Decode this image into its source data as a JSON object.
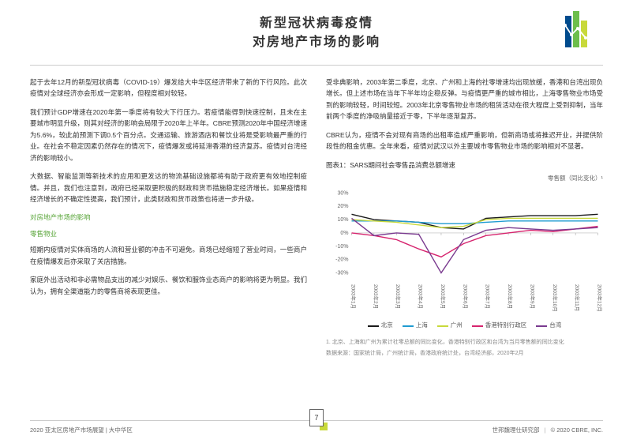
{
  "title": {
    "line1": "新型冠状病毒疫情",
    "line2": "对房地产市场的影响"
  },
  "left_col": {
    "p1": "起于去年12月的新型冠状病毒（COVID-19）爆发给大中华区经济带来了新的下行风险。此次疫情对全球经济亦会形成一定影响，但程度相对较轻。",
    "p2": "我们预计GDP增速在2020年第一季度将有较大下行压力。若疫情能得到快速控制，且未在主要城市明显升级，则其对经济的影响会局限于2020年上半年。CBRE预测2020年中国经济增速为5.6%，较此前预测下调0.5个百分点。交通运输、旅游酒店和餐饮业将是受影响最严重的行业。在社会不稳定因素仍然存在的情况下，疫情爆发或将延滞香港的经济复苏。疫情对台湾经济的影响较小。",
    "p3": "大数据、智能监测等新技术的应用和更发达的物流基础设施都将有助于政府更有效地控制疫情。并且，我们也注意到，政府已经采取更积极的财政和货币措施稳定经济增长。如果疫情和经济增长的不确定性提高，我们预计，此类财政和货币政策也将进一步升级。",
    "h1": "对房地产市场的影响",
    "h2": "零售物业",
    "p4": "短期内疫情对实体商场的人流和营业额的冲击不可避免。商场已经缩短了营业时间，一些商户在疫情爆发后亦采取了关店措施。",
    "p5": "家庭外出活动和非必需物品支出的减少对娱乐、餐饮和服饰业态商户的影响将更为明显。我们认为，拥有全渠道能力的零售商将表现更佳。"
  },
  "right_col": {
    "p1": "受非典影响，2003年第二季度，北京、广州和上海的社零增速均出现放缓，香港和台湾出现负增长。但上述市场在当年下半年均企稳反弹。与疫情更严重的城市相比，上海零售物业市场受到的影响较轻，时间较短。2003年北京零售物业市场的租赁活动在很大程度上受到抑制，当年前两个季度的净吸纳量接近于零，下半年逐渐复苏。",
    "p2": "CBRE认为，疫情不会对现有商场的出租率造成严重影响，但新商场或将推迟开业，并提供阶段性的租金优惠。全年来看，疫情对武汉以外主要城市零售物业市场的影响相对不显著。"
  },
  "chart": {
    "title": "图表1：SARS期间社会零售品消费总额增速",
    "subtitle": "零售额（同比变化）¹",
    "x_labels": [
      "2003年1月",
      "2003年2月",
      "2003年3月",
      "2003年4月",
      "2003年5月",
      "2003年6月",
      "2003年7月",
      "2003年8月",
      "2003年9月",
      "2003年10月",
      "2003年11月",
      "2003年12月"
    ],
    "y_ticks": [
      -30,
      -20,
      -10,
      0,
      10,
      20,
      30
    ],
    "ylim": [
      -35,
      32
    ],
    "series": [
      {
        "name": "北京",
        "color": "#1a1a1a",
        "values": [
          14,
          10,
          9,
          8,
          4,
          3,
          11,
          12,
          13,
          13,
          13,
          14
        ]
      },
      {
        "name": "上海",
        "color": "#1f9bd1",
        "values": [
          9,
          9,
          9,
          8,
          7,
          7,
          8,
          9,
          9,
          9,
          9,
          9
        ]
      },
      {
        "name": "广州",
        "color": "#c8d93b",
        "values": [
          10,
          9,
          8,
          6,
          4,
          5,
          10,
          11,
          11,
          11,
          11,
          11
        ]
      },
      {
        "name": "香港特别行政区",
        "color": "#d6246e",
        "values": [
          0,
          -2,
          -5,
          -12,
          -18,
          -8,
          -2,
          0,
          2,
          1,
          3,
          5
        ]
      },
      {
        "name": "台湾",
        "color": "#7a3a8f",
        "values": [
          11,
          -2,
          0,
          -1,
          -30,
          -5,
          2,
          4,
          3,
          2,
          3,
          4
        ]
      }
    ],
    "note1": "1. 北京、上海和广州为累计社零总额的同比变化，香港特别行政区和台湾为当月零售额的同比变化",
    "note2": "数据来源：国家统计局，广州统计局，香港政府统计处，台湾经济部，2020年2月"
  },
  "footer": {
    "left": "2020 亚太区房地产市场展望 | 大中华区",
    "right_dept": "世邦魏理仕研究部",
    "right_copy": "© 2020 CBRE, INC.",
    "page": "7"
  }
}
